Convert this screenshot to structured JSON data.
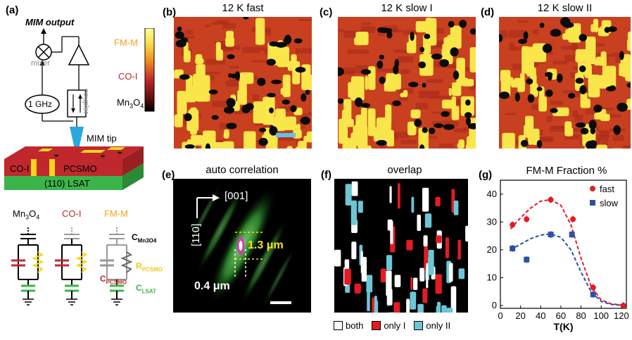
{
  "panel_labels": {
    "a": "(a)",
    "b": "(b)",
    "c": "(c)",
    "d": "(d)",
    "e": "(e)",
    "f": "(f)",
    "g": "(g)"
  },
  "panel_a": {
    "mim_output": "MIM output",
    "mixer": "mixer",
    "coupler": "coupler",
    "source": "1 GHz",
    "tip": "MIM tip",
    "sample_left": "CO-I",
    "sample_right": "PCSMO",
    "substrate": "(110) LSAT",
    "colorbar_labels": {
      "top": "FM-M",
      "mid": "CO-I",
      "bottom_main": "Mn",
      "bottom_sub1": "3",
      "bottom_mid": "O",
      "bottom_sub2": "4"
    },
    "circuit_titles": {
      "c1_main": "Mn",
      "c1_sub1": "3",
      "c1_mid": "O",
      "c1_sub2": "4",
      "c2": "CO-I",
      "c3": "FM-M"
    },
    "circuit_labels": {
      "c_mn3o4_main": "C",
      "c_mn3o4_sub": "Mn3O4",
      "r_pcsmo_main": "R",
      "r_pcsmo_sub": "PCSMO",
      "c_pcsmo_main": "C",
      "c_pcsmo_sub": "PCSMO",
      "c_lsat_main": "C",
      "c_lsat_sub": "LSAT"
    },
    "colors": {
      "fmm": "#f5a31d",
      "coi": "#c0282d",
      "mn3o4": "#111111",
      "lsat": "#3cb44a",
      "tip": "#29a8e0"
    }
  },
  "panel_titles": {
    "b": "12 K fast",
    "c": "12 K slow I",
    "d": "12 K slow II",
    "e": "auto correlation",
    "f": "overlap"
  },
  "panel_e": {
    "dir_x": "[001]",
    "dir_y": "[110]",
    "len_long": "1.3 μm",
    "len_short": "0.4 μm"
  },
  "panel_f_legend": {
    "both": "both",
    "only1": "only I",
    "only2": "only II",
    "colors": {
      "both": "#ffffff",
      "only1": "#e31b23",
      "only2": "#6cc6d6"
    }
  },
  "chart_data": {
    "type": "scatter",
    "title": "FM-M Fraction %",
    "xlabel": "T(K)",
    "ylabel": "",
    "xlim": [
      0,
      125
    ],
    "ylim": [
      -1,
      45
    ],
    "xticks": [
      0,
      20,
      40,
      60,
      80,
      100,
      120
    ],
    "yticks": [
      0,
      10,
      20,
      30,
      40
    ],
    "legend_position": "top-right",
    "series": [
      {
        "name": "fast",
        "color": "#e31b23",
        "marker": "circle",
        "x": [
          12,
          26,
          50,
          72,
          92,
          122
        ],
        "y": [
          29,
          31,
          38,
          31,
          6.5,
          0
        ],
        "fit_x": [
          10,
          20,
          30,
          40,
          50,
          60,
          70,
          80,
          90,
          100,
          110,
          120
        ],
        "fit_y": [
          27.5,
          31.5,
          35,
          37.5,
          38,
          36,
          29,
          17,
          7,
          2,
          0.6,
          0.2
        ]
      },
      {
        "name": "slow",
        "color": "#2e4fa3",
        "marker": "square",
        "x": [
          12,
          26,
          50,
          71,
          92
        ],
        "y": [
          20.5,
          16.5,
          25.5,
          25.5,
          4
        ],
        "fit_x": [
          10,
          20,
          30,
          40,
          50,
          60,
          70,
          80,
          90,
          100,
          110,
          120
        ],
        "fit_y": [
          20,
          22,
          24,
          25.3,
          25.7,
          24.5,
          20,
          12,
          5,
          1.5,
          0.4,
          0.1
        ]
      }
    ]
  }
}
